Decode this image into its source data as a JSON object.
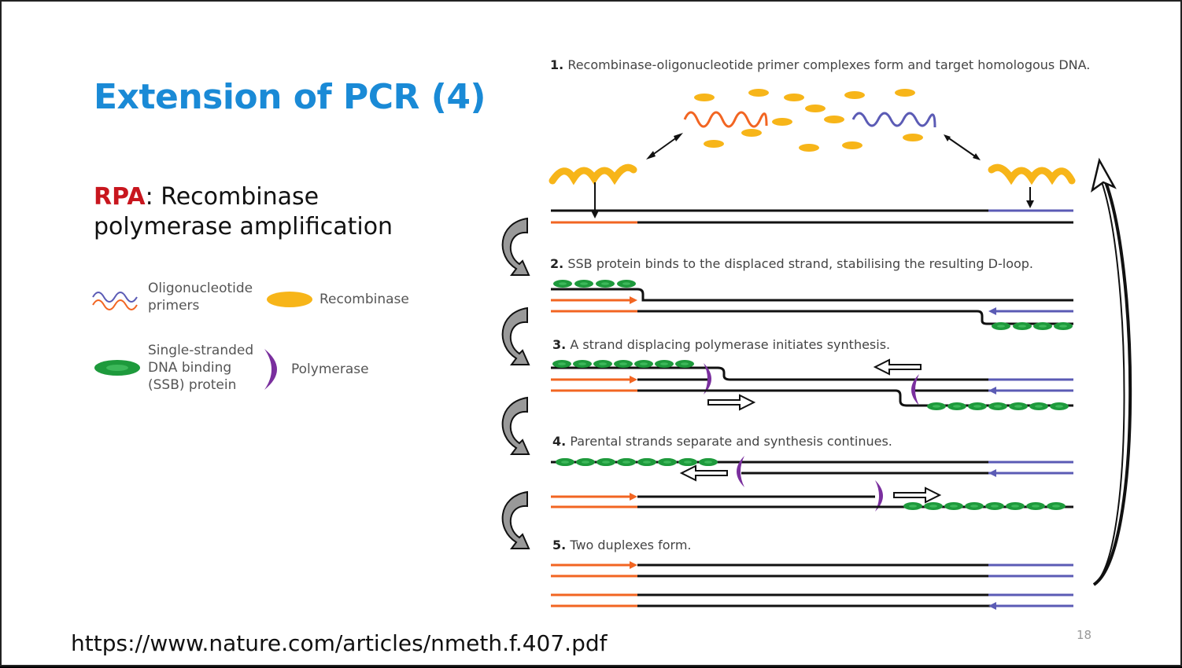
{
  "slide": {
    "title": "Extension of PCR (4)",
    "subtitle_acronym": "RPA",
    "subtitle_rest": ": Recombinase polymerase amplification",
    "source_url": "https://www.nature.com/articles/nmeth.f.407.pdf",
    "page_number": "18"
  },
  "legend": {
    "primers": "Oligonucleotide primers",
    "recombinase": "Recombinase",
    "ssb": "Single-stranded DNA binding (SSB) protein",
    "polymerase": "Polymerase"
  },
  "steps": [
    {
      "num": "1.",
      "text": "Recombinase-oligonucleotide primer complexes form and target homologous DNA."
    },
    {
      "num": "2.",
      "text": "SSB protein binds to the displaced strand, stabilising the resulting D-loop."
    },
    {
      "num": "3.",
      "text": "A strand displacing polymerase initiates synthesis."
    },
    {
      "num": "4.",
      "text": "Parental strands separate and synthesis continues."
    },
    {
      "num": "5.",
      "text": "Two duplexes form."
    }
  ],
  "colors": {
    "title": "#1a8ad6",
    "acronym": "#c8161e",
    "primer_forward": "#f26522",
    "primer_reverse": "#5b5bb5",
    "recombinase": "#f7b519",
    "ssb": "#1e9a3c",
    "polymerase": "#7a2f9e",
    "dna": "#111111"
  }
}
